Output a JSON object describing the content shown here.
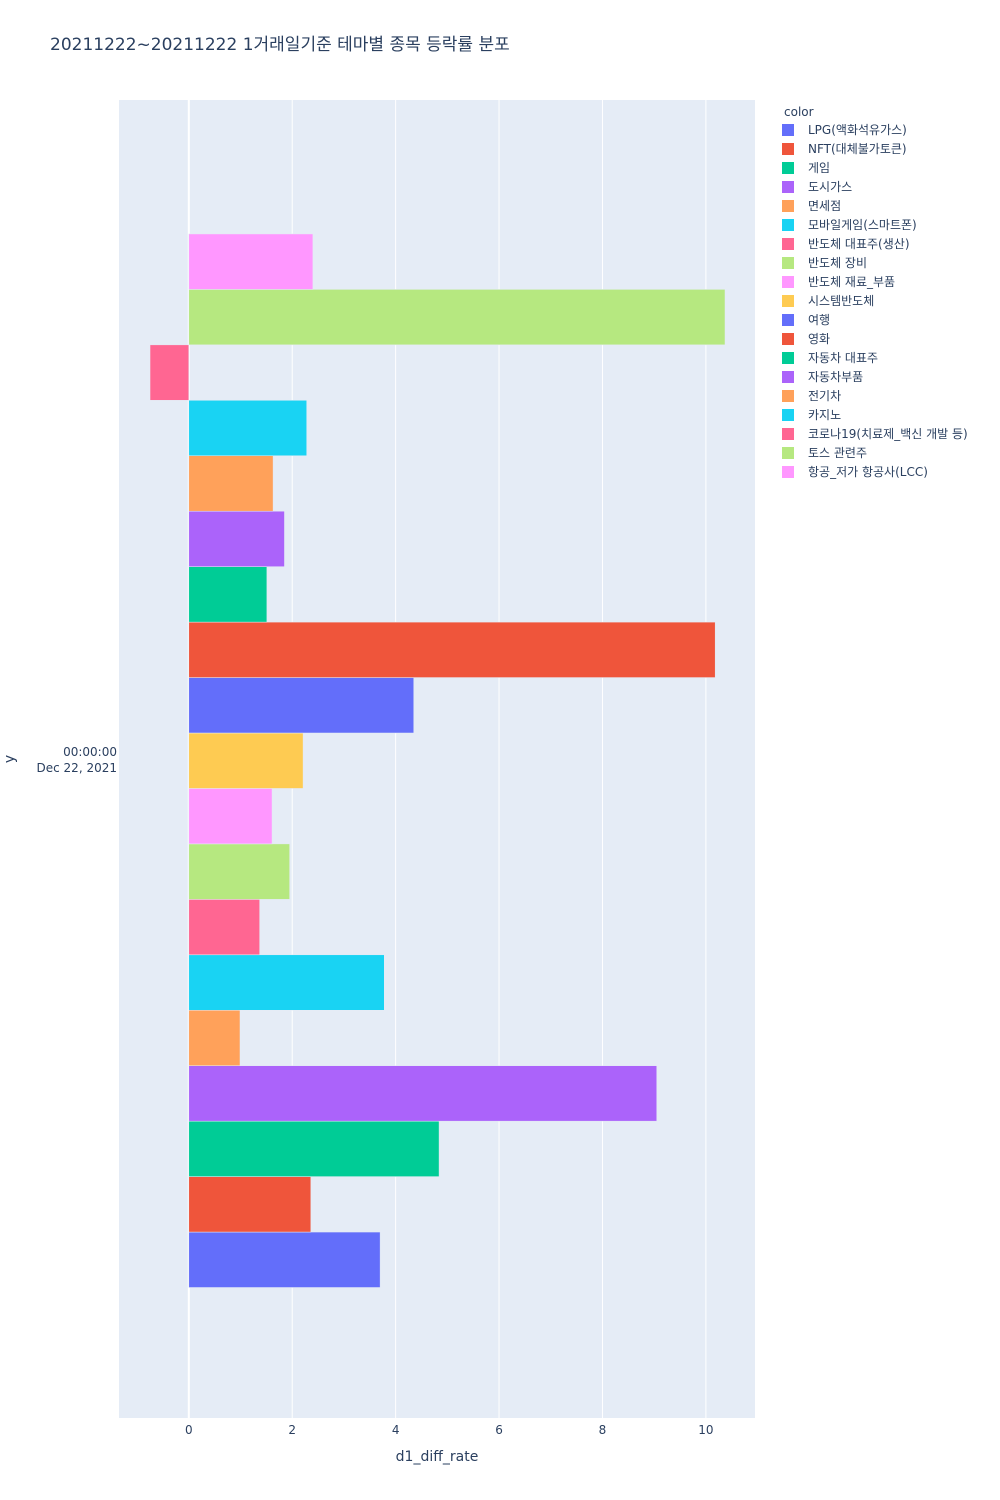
{
  "chart_data": {
    "type": "bar",
    "orientation": "horizontal",
    "title": "20211222~20211222 1거래일기준 테마별 종목 등락률 분포",
    "xlabel": "d1_diff_rate",
    "ylabel": "y",
    "y_tick": [
      "00:00:00",
      "Dec 22, 2021"
    ],
    "xlim": [
      -1.35,
      10.95
    ],
    "xticks": [
      0,
      2,
      4,
      6,
      8,
      10
    ],
    "legend_title": "color",
    "legend_position": "top-right",
    "series": [
      {
        "name": "LPG(액화석유가스)",
        "value": 3.7,
        "color": "#636efa"
      },
      {
        "name": "NFT(대체불가토큰)",
        "value": 2.36,
        "color": "#EF553B"
      },
      {
        "name": "게임",
        "value": 4.84,
        "color": "#00cc96"
      },
      {
        "name": "도시가스",
        "value": 9.05,
        "color": "#ab63fa"
      },
      {
        "name": "면세점",
        "value": 0.99,
        "color": "#FFA15A"
      },
      {
        "name": "모바일게임(스마트폰)",
        "value": 3.78,
        "color": "#19d3f3"
      },
      {
        "name": "반도체 대표주(생산)",
        "value": 1.37,
        "color": "#FF6692"
      },
      {
        "name": "반도체 장비",
        "value": 1.95,
        "color": "#B6E880"
      },
      {
        "name": "반도체 재료_부품",
        "value": 1.61,
        "color": "#FF97FF"
      },
      {
        "name": "시스템반도체",
        "value": 2.21,
        "color": "#FECB52"
      },
      {
        "name": "여행",
        "value": 4.35,
        "color": "#636efa"
      },
      {
        "name": "영화",
        "value": 10.18,
        "color": "#EF553B"
      },
      {
        "name": "자동차 대표주",
        "value": 1.51,
        "color": "#00cc96"
      },
      {
        "name": "자동차부품",
        "value": 1.85,
        "color": "#ab63fa"
      },
      {
        "name": "전기차",
        "value": 1.63,
        "color": "#FFA15A"
      },
      {
        "name": "카지노",
        "value": 2.28,
        "color": "#19d3f3"
      },
      {
        "name": "코로나19(치료제_백신 개발 등)",
        "value": -0.75,
        "color": "#FF6692"
      },
      {
        "name": "토스 관련주",
        "value": 10.37,
        "color": "#B6E880"
      },
      {
        "name": "항공_저가 항공사(LCC)",
        "value": 2.4,
        "color": "#FF97FF"
      }
    ]
  }
}
